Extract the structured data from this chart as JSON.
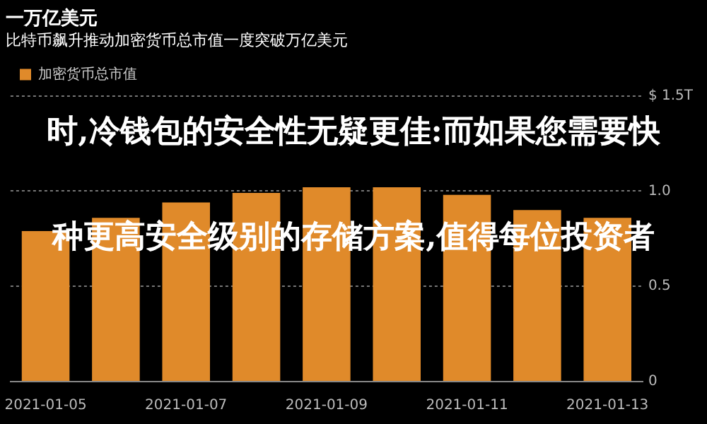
{
  "chart_data": {
    "type": "bar",
    "title": "一万亿美元",
    "subtitle": "比特币飙升推动加密货币总市值一度突破万亿美元",
    "categories": [
      "2021-01-05",
      null,
      "2021-01-07",
      null,
      "2021-01-09",
      null,
      "2021-01-11",
      null,
      "2021-01-13"
    ],
    "series": [
      {
        "name": "加密货币总市值",
        "color": "#e08a2a",
        "values": [
          0.79,
          0.86,
          0.94,
          0.99,
          1.02,
          1.02,
          0.98,
          0.9,
          0.86
        ]
      }
    ],
    "ylim": [
      0,
      1.5
    ],
    "yticks": [
      0,
      0.5,
      {
        "value": 1,
        "label": "1.0"
      },
      {
        "value": 1.5,
        "label": "$ 1.5T"
      }
    ],
    "grid": "y",
    "legend": "top left",
    "annotations": [
      "时,冷钱包的安全性无疑更佳:而如果您需要快",
      "种更高安全级别的存储方案,值得每位投资者"
    ]
  }
}
